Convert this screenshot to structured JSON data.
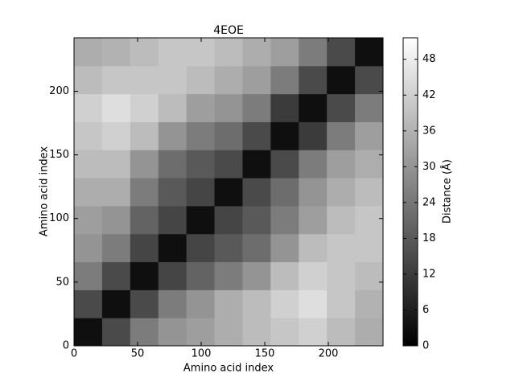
{
  "chart_data": {
    "type": "heatmap",
    "title": "4EOE",
    "xlabel": "Amino acid index",
    "ylabel": "Amino acid index",
    "xlim": [
      0,
      243
    ],
    "ylim": [
      0,
      242
    ],
    "xticks": [
      0,
      50,
      100,
      150,
      200
    ],
    "yticks": [
      0,
      50,
      100,
      150,
      200
    ],
    "colormap": "gray",
    "colorbar_label": "Distance (Å)",
    "clim": [
      0,
      51.6
    ],
    "cticks": [
      0,
      6,
      12,
      18,
      24,
      30,
      36,
      42,
      48
    ],
    "z": [
      [
        3,
        15,
        25,
        30,
        32,
        35,
        38,
        40,
        42,
        38,
        35
      ],
      [
        15,
        3,
        15,
        25,
        30,
        35,
        38,
        42,
        45,
        40,
        36
      ],
      [
        25,
        15,
        3,
        14,
        20,
        25,
        30,
        38,
        42,
        40,
        38
      ],
      [
        30,
        25,
        14,
        3,
        14,
        18,
        22,
        30,
        38,
        40,
        40
      ],
      [
        32,
        30,
        20,
        14,
        3,
        14,
        18,
        25,
        32,
        38,
        40
      ],
      [
        35,
        35,
        25,
        18,
        14,
        3,
        15,
        22,
        30,
        35,
        38
      ],
      [
        38,
        38,
        30,
        22,
        18,
        15,
        3,
        15,
        25,
        32,
        35
      ],
      [
        40,
        42,
        38,
        30,
        25,
        22,
        15,
        3,
        12,
        25,
        32
      ],
      [
        42,
        45,
        42,
        38,
        32,
        30,
        25,
        12,
        3,
        15,
        25
      ],
      [
        38,
        40,
        40,
        40,
        38,
        35,
        32,
        25,
        15,
        3,
        15
      ],
      [
        35,
        36,
        38,
        40,
        40,
        38,
        35,
        32,
        25,
        15,
        3
      ]
    ]
  }
}
